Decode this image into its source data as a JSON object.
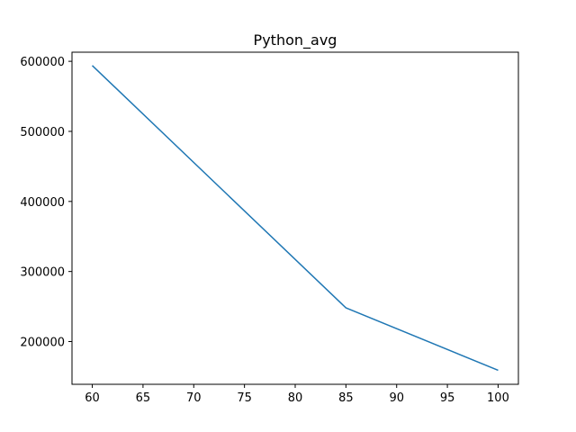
{
  "chart_data": {
    "type": "line",
    "title": "Python_avg",
    "xlabel": "",
    "ylabel": "",
    "xlim": [
      58,
      102
    ],
    "ylim": [
      139000,
      613000
    ],
    "grid": false,
    "x_ticks": [
      60,
      65,
      70,
      75,
      80,
      85,
      90,
      95,
      100
    ],
    "y_ticks": [
      200000,
      300000,
      400000,
      500000,
      600000
    ],
    "series": [
      {
        "color": "#1f77b4",
        "x": [
          60,
          85,
          100
        ],
        "y": [
          594000,
          248000,
          159000
        ]
      }
    ]
  }
}
